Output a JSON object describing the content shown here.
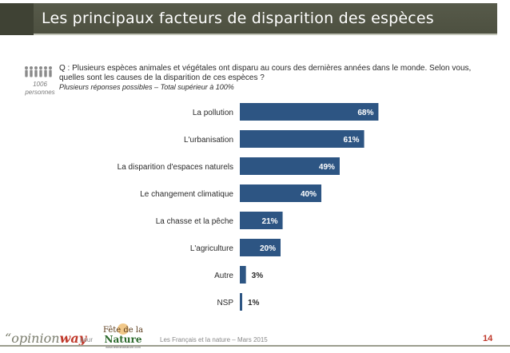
{
  "header": {
    "title": "Les principaux facteurs de disparition des espèces"
  },
  "sample": {
    "count_line1": "1006",
    "count_line2": "personnes"
  },
  "question": {
    "text": "Q : Plusieurs espèces animales et végétales ont disparu au cours des dernières années dans le monde. Selon vous, quelles sont les causes de la disparition de ces espèces ?",
    "note": "Plusieurs réponses possibles – Total supérieur à 100%"
  },
  "colors": {
    "bar": "#2d5583",
    "accent": "#c0392b",
    "title_bg": "#555848"
  },
  "chart_data": {
    "type": "bar",
    "orientation": "horizontal",
    "title": "",
    "xlabel": "",
    "ylabel": "",
    "categories": [
      "La pollution",
      "L'urbanisation",
      "La disparition d'espaces naturels",
      "Le changement climatique",
      "La chasse et la pêche",
      "L'agriculture",
      "Autre",
      "NSP"
    ],
    "values": [
      68,
      61,
      49,
      40,
      21,
      20,
      3,
      1
    ],
    "value_labels": [
      "68%",
      "61%",
      "49%",
      "40%",
      "21%",
      "20%",
      "3%",
      "1%"
    ],
    "xlim": [
      0,
      100
    ],
    "grid": false,
    "legend": "none"
  },
  "footer": {
    "brand_prefix": "opinion",
    "brand_suffix": "way",
    "pour": "pour",
    "logo_line1": "Fête de la",
    "logo_line2": "Nature",
    "logo_url": "www.fetedelanature.com",
    "text": "Les Français et la nature – Mars 2015",
    "page": "14"
  }
}
